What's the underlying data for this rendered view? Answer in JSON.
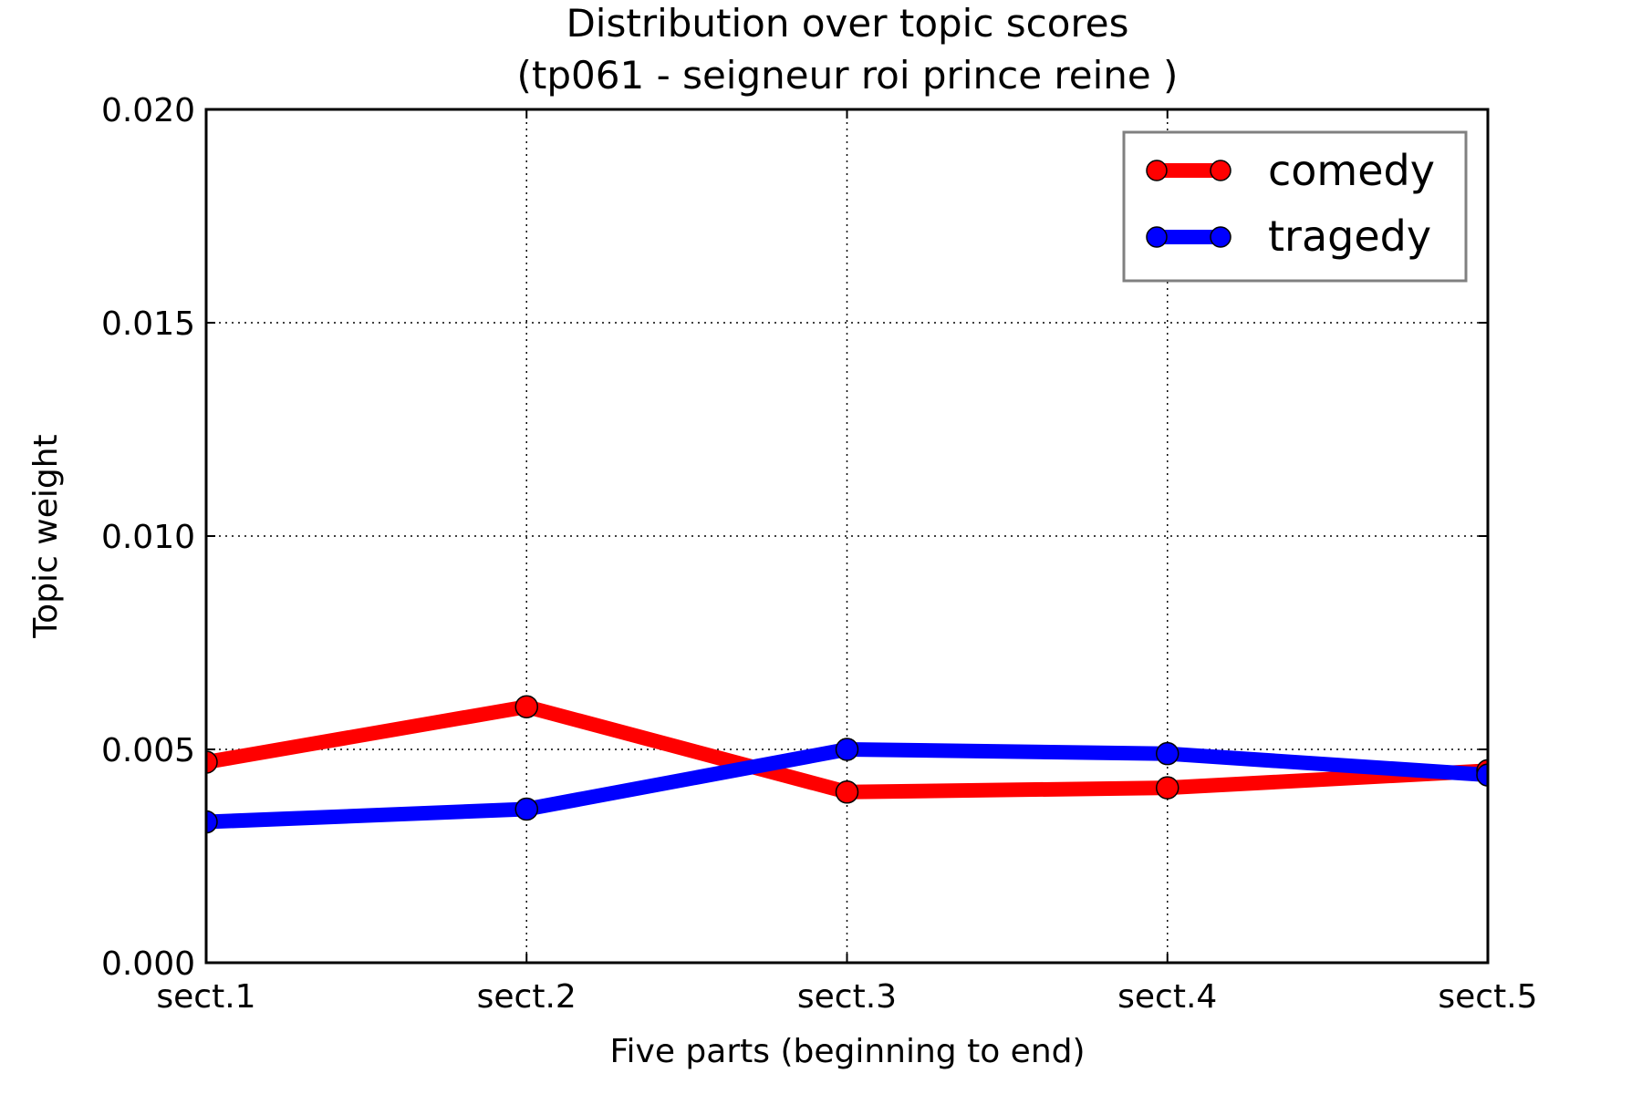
{
  "chart_data": {
    "type": "line",
    "title": "Distribution over topic scores",
    "subtitle": "(tp061 - seigneur roi prince reine )",
    "xlabel": "Five parts (beginning to end)",
    "ylabel": "Topic weight",
    "categories": [
      "sect.1",
      "sect.2",
      "sect.3",
      "sect.4",
      "sect.5"
    ],
    "ylim": [
      0,
      0.02
    ],
    "yticks": [
      "0.000",
      "0.005",
      "0.010",
      "0.015",
      "0.020"
    ],
    "ytick_values": [
      0,
      0.005,
      0.01,
      0.015,
      0.02
    ],
    "grid": true,
    "legend_position": "top-right",
    "series": [
      {
        "name": "comedy",
        "color": "#ff0000",
        "values": [
          0.0047,
          0.006,
          0.004,
          0.0041,
          0.0045
        ]
      },
      {
        "name": "tragedy",
        "color": "#0000ff",
        "values": [
          0.0033,
          0.0036,
          0.005,
          0.0049,
          0.0044
        ]
      }
    ]
  }
}
